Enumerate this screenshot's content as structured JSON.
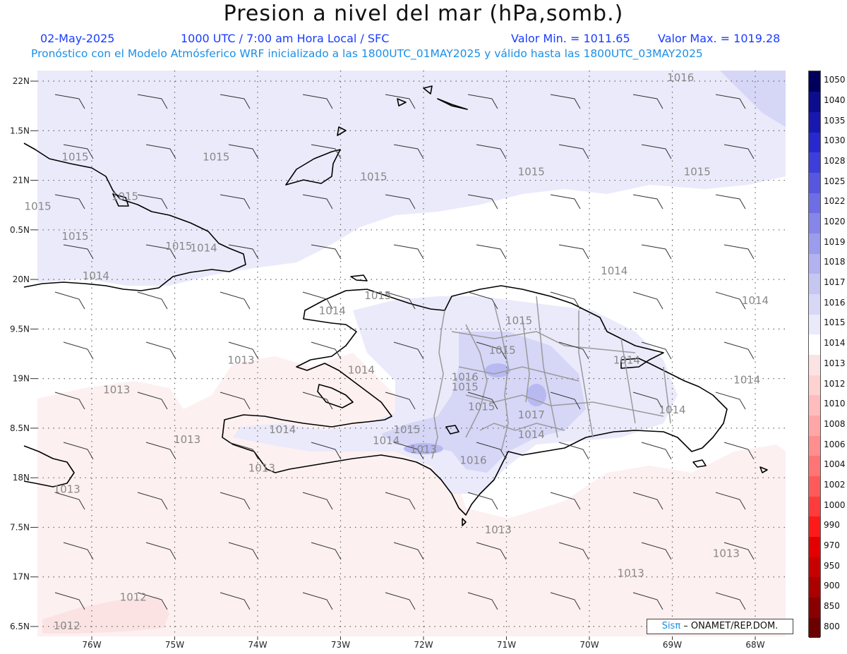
{
  "title": "Presion a nivel del mar (hPa,somb.)",
  "header": {
    "date": "02-May-2025",
    "time": "1000 UTC / 7:00 am Hora Local / SFC",
    "valor_min": "Valor Min. = 1011.65",
    "valor_max": "Valor Max. = 1019.28",
    "forecast_line": "Pronóstico con el Modelo Atmósferico WRF inicializado a las 1800UTC_01MAY2025 y válido hasta las  1800UTC_03MAY2025"
  },
  "colors": {
    "p1012": "#fbe3e3",
    "p1013": "#fdf0f0",
    "p1014": "#ffffff",
    "p1015": "#eaeafb",
    "p1016": "#d6d6f7",
    "p1017": "#b9b9f2",
    "coast": "#000000",
    "border": "#9a9a9a",
    "grid": "#666666",
    "contour_label": "#888888"
  },
  "axes": {
    "lon_labels": [
      "76W",
      "75W",
      "74W",
      "73W",
      "72W",
      "71W",
      "70W",
      "69W",
      "68W"
    ],
    "lat_labels": [
      "22N",
      "1.5N",
      "21N",
      "0.5N",
      "20N",
      "9.5N",
      "19N",
      "8.5N",
      "18N",
      "7.5N",
      "17N",
      "6.5N"
    ]
  },
  "contour_labels": [
    {
      "text": "1016",
      "lon": -68.9,
      "lat": 22.0
    },
    {
      "text": "1015",
      "lon": -76.2,
      "lat": 21.2
    },
    {
      "text": "1015",
      "lon": -74.5,
      "lat": 21.2
    },
    {
      "text": "1015",
      "lon": -75.6,
      "lat": 20.8
    },
    {
      "text": "1015",
      "lon": -72.6,
      "lat": 21.0
    },
    {
      "text": "1015",
      "lon": -70.7,
      "lat": 21.05
    },
    {
      "text": "1015",
      "lon": -68.7,
      "lat": 21.05
    },
    {
      "text": "1015",
      "lon": -76.65,
      "lat": 20.7
    },
    {
      "text": "1015",
      "lon": -76.2,
      "lat": 20.4
    },
    {
      "text": "1015",
      "lon": -74.95,
      "lat": 20.3
    },
    {
      "text": "1014",
      "lon": -74.65,
      "lat": 20.28
    },
    {
      "text": "1014",
      "lon": -75.95,
      "lat": 20.0
    },
    {
      "text": "1014",
      "lon": -69.7,
      "lat": 20.05
    },
    {
      "text": "1014",
      "lon": -68.0,
      "lat": 19.75
    },
    {
      "text": "1015",
      "lon": -72.55,
      "lat": 19.8
    },
    {
      "text": "1014",
      "lon": -73.1,
      "lat": 19.65
    },
    {
      "text": "1015",
      "lon": -70.85,
      "lat": 19.55
    },
    {
      "text": "1015",
      "lon": -71.05,
      "lat": 19.25
    },
    {
      "text": "1014",
      "lon": -69.55,
      "lat": 19.15
    },
    {
      "text": "1013",
      "lon": -74.2,
      "lat": 19.15
    },
    {
      "text": "1014",
      "lon": -72.75,
      "lat": 19.05
    },
    {
      "text": "1016",
      "lon": -71.5,
      "lat": 18.98
    },
    {
      "text": "1015",
      "lon": -71.5,
      "lat": 18.88
    },
    {
      "text": "1014",
      "lon": -68.1,
      "lat": 18.95
    },
    {
      "text": "1013",
      "lon": -75.7,
      "lat": 18.85
    },
    {
      "text": "1015",
      "lon": -71.3,
      "lat": 18.68
    },
    {
      "text": "1014",
      "lon": -69.0,
      "lat": 18.65
    },
    {
      "text": "1017",
      "lon": -70.7,
      "lat": 18.6
    },
    {
      "text": "1015",
      "lon": -72.2,
      "lat": 18.45
    },
    {
      "text": "1014",
      "lon": -73.7,
      "lat": 18.45
    },
    {
      "text": "1014",
      "lon": -72.45,
      "lat": 18.34
    },
    {
      "text": "1013",
      "lon": -72.0,
      "lat": 18.25
    },
    {
      "text": "1013",
      "lon": -74.85,
      "lat": 18.35
    },
    {
      "text": "1014",
      "lon": -70.7,
      "lat": 18.4
    },
    {
      "text": "1016",
      "lon": -71.4,
      "lat": 18.14
    },
    {
      "text": "1013",
      "lon": -73.95,
      "lat": 18.06
    },
    {
      "text": "1013",
      "lon": -76.3,
      "lat": 17.85
    },
    {
      "text": "1013",
      "lon": -71.1,
      "lat": 17.44
    },
    {
      "text": "1013",
      "lon": -68.35,
      "lat": 17.2
    },
    {
      "text": "1013",
      "lon": -69.5,
      "lat": 17.0
    },
    {
      "text": "1012",
      "lon": -75.5,
      "lat": 16.76
    },
    {
      "text": "1012",
      "lon": -76.3,
      "lat": 16.47
    }
  ],
  "colorbar": {
    "levels": [
      "800",
      "850",
      "900",
      "950",
      "970",
      "990",
      "1000",
      "1002",
      "1004",
      "1006",
      "1008",
      "1010",
      "1012",
      "1013",
      "1014",
      "1015",
      "1016",
      "1017",
      "1018",
      "1019",
      "1020",
      "1022",
      "1025",
      "1028",
      "1030",
      "1035",
      "1040",
      "1050"
    ],
    "colors": [
      "#6b0000",
      "#8a0000",
      "#aa0000",
      "#c80000",
      "#e40000",
      "#ff1a1a",
      "#ff3c3c",
      "#ff5a5a",
      "#ff7474",
      "#ff8e8e",
      "#ffa6a6",
      "#ffbcbc",
      "#ffd2d2",
      "#fbe3e3",
      "#ffffff",
      "#eaeafb",
      "#d8d8f6",
      "#c6c6f3",
      "#b2b2f0",
      "#9c9cec",
      "#8686e8",
      "#6e6ee4",
      "#5656df",
      "#3e3edb",
      "#2828cf",
      "#1818b0",
      "#0c0c8e",
      "#00005c"
    ]
  },
  "credit": {
    "sis": "Sisπ",
    "text": " – ONAMET/REP.DOM."
  }
}
